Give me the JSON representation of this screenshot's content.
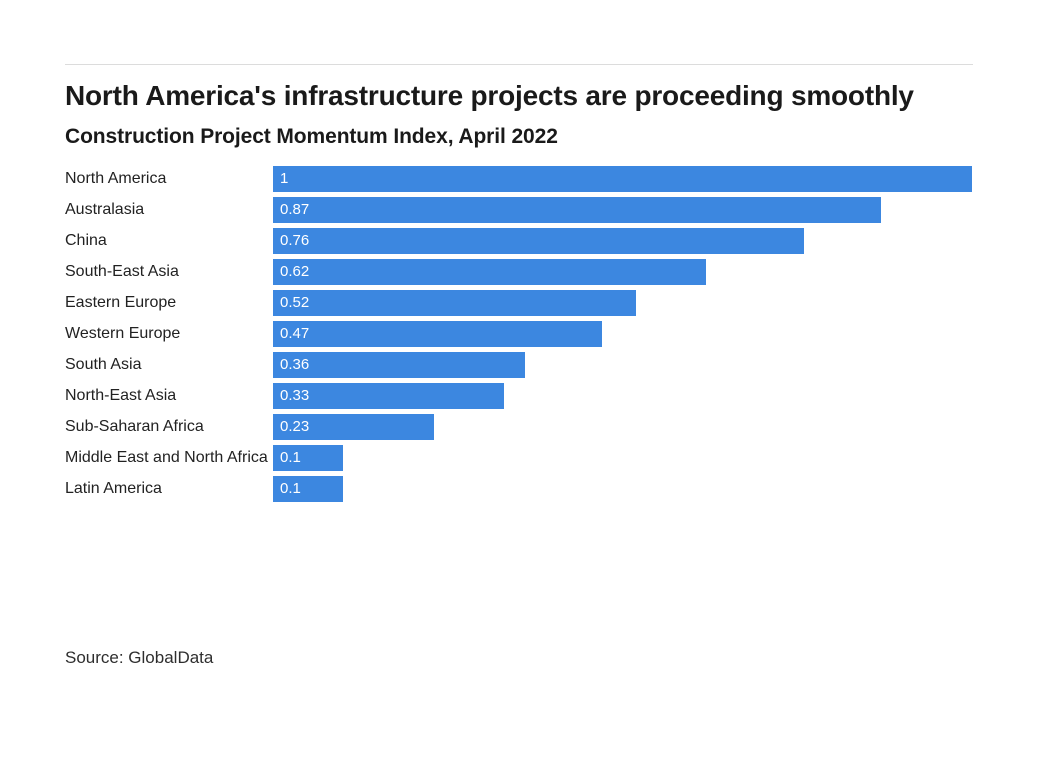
{
  "header": {
    "title": "North America's infrastructure projects are proceeding smoothly",
    "subtitle": "Construction Project Momentum Index, April 2022"
  },
  "chart_data": {
    "type": "bar",
    "orientation": "horizontal",
    "title": "North America's infrastructure projects are proceeding smoothly",
    "subtitle": "Construction Project Momentum Index, April 2022",
    "categories": [
      "North America",
      "Australasia",
      "China",
      "South-East Asia",
      "Eastern Europe",
      "Western Europe",
      "South Asia",
      "North-East Asia",
      "Sub-Saharan Africa",
      "Middle East and North Africa",
      "Latin America"
    ],
    "values": [
      1,
      0.87,
      0.76,
      0.62,
      0.52,
      0.47,
      0.36,
      0.33,
      0.23,
      0.1,
      0.1
    ],
    "value_labels": [
      "1",
      "0.87",
      "0.76",
      "0.62",
      "0.52",
      "0.47",
      "0.36",
      "0.33",
      "0.23",
      "0.1",
      "0.1"
    ],
    "xlim": [
      0,
      1
    ],
    "grid": false,
    "legend": false,
    "bar_color": "#3c87e0",
    "value_label_color": "#ffffff"
  },
  "footer": {
    "source": "Source: GlobalData"
  },
  "colors": {
    "background": "#ffffff",
    "divider": "#dcdcdc",
    "text": "#1a1a1a"
  }
}
